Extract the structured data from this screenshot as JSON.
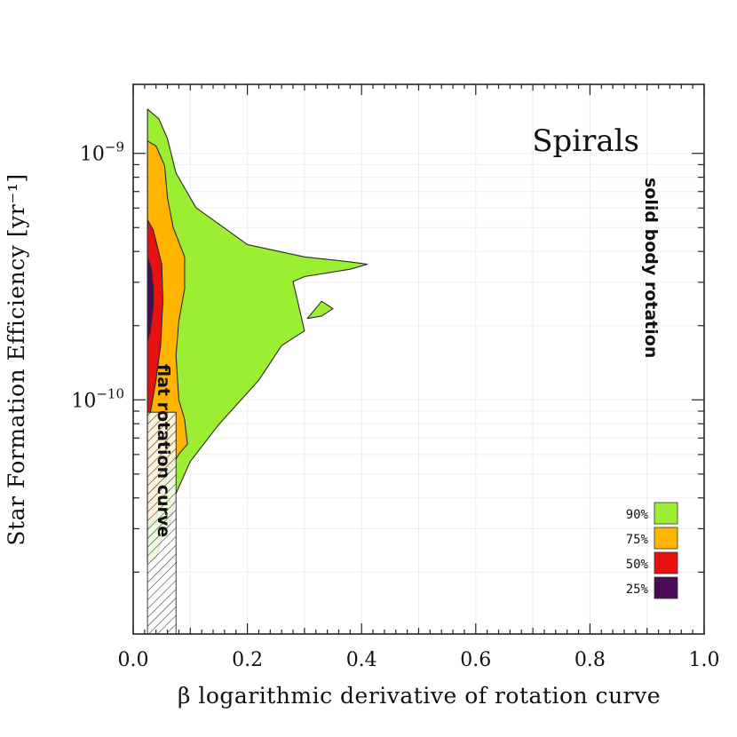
{
  "chart_data": {
    "type": "contour",
    "title": "Spirals",
    "xlabel": "β logarithmic derivative of rotation curve",
    "ylabel": "Star Formation Efficiency [yr⁻¹]",
    "xlim": [
      0.0,
      1.0
    ],
    "ylim_log10": [
      -10.95,
      -8.72
    ],
    "xticks": [
      0.0,
      0.2,
      0.4,
      0.6,
      0.8,
      1.0
    ],
    "xtick_labels": [
      "0.0",
      "0.2",
      "0.4",
      "0.6",
      "0.8",
      "1.0"
    ],
    "yticks_log10": [
      -10,
      -9
    ],
    "ytick_labels": [
      {
        "base": "10",
        "exp": "−10"
      },
      {
        "base": "10",
        "exp": "−9"
      }
    ],
    "grid": true,
    "annotations": {
      "flat": "flat rotation curve",
      "solid": "solid body rotation"
    },
    "legend_position": "bottom-right",
    "contours": [
      {
        "level": "90%",
        "color": "#9cee32",
        "polygons": [
          [
            [
              0.025,
              -8.82
            ],
            [
              0.045,
              -8.86
            ],
            [
              0.06,
              -8.94
            ],
            [
              0.075,
              -9.08
            ],
            [
              0.11,
              -9.22
            ],
            [
              0.2,
              -9.37
            ],
            [
              0.3,
              -9.42
            ],
            [
              0.38,
              -9.44
            ],
            [
              0.41,
              -9.45
            ],
            [
              0.38,
              -9.47
            ],
            [
              0.3,
              -9.5
            ],
            [
              0.28,
              -9.52
            ],
            [
              0.29,
              -9.62
            ],
            [
              0.3,
              -9.72
            ],
            [
              0.26,
              -9.78
            ],
            [
              0.22,
              -9.92
            ],
            [
              0.15,
              -10.1
            ],
            [
              0.1,
              -10.25
            ],
            [
              0.075,
              -10.38
            ],
            [
              0.065,
              -10.5
            ],
            [
              0.05,
              -10.56
            ],
            [
              0.04,
              -10.64
            ],
            [
              0.025,
              -10.66
            ]
          ],
          [
            [
              0.305,
              -9.67
            ],
            [
              0.33,
              -9.6
            ],
            [
              0.35,
              -9.63
            ],
            [
              0.33,
              -9.66
            ]
          ]
        ]
      },
      {
        "level": "75%",
        "color": "#ffb400",
        "polygons": [
          [
            [
              0.025,
              -8.95
            ],
            [
              0.04,
              -8.97
            ],
            [
              0.055,
              -9.05
            ],
            [
              0.06,
              -9.18
            ],
            [
              0.07,
              -9.3
            ],
            [
              0.09,
              -9.42
            ],
            [
              0.09,
              -9.55
            ],
            [
              0.08,
              -9.68
            ],
            [
              0.075,
              -9.82
            ],
            [
              0.08,
              -10.0
            ],
            [
              0.09,
              -10.08
            ],
            [
              0.095,
              -10.18
            ],
            [
              0.08,
              -10.22
            ],
            [
              0.06,
              -10.3
            ],
            [
              0.04,
              -10.48
            ],
            [
              0.025,
              -10.52
            ]
          ]
        ]
      },
      {
        "level": "50%",
        "color": "#e81010",
        "polygons": [
          [
            [
              0.025,
              -9.27
            ],
            [
              0.035,
              -9.31
            ],
            [
              0.05,
              -9.45
            ],
            [
              0.052,
              -9.6
            ],
            [
              0.048,
              -9.78
            ],
            [
              0.04,
              -9.92
            ],
            [
              0.025,
              -10.12
            ]
          ]
        ]
      },
      {
        "level": "25%",
        "color": "#4a0a55",
        "polygons": [
          [
            [
              0.025,
              -9.42
            ],
            [
              0.032,
              -9.47
            ],
            [
              0.035,
              -9.55
            ],
            [
              0.035,
              -9.62
            ],
            [
              0.03,
              -9.72
            ],
            [
              0.025,
              -9.76
            ]
          ]
        ]
      }
    ],
    "hatch_region": [
      [
        0.025,
        -10.05
      ],
      [
        0.075,
        -10.05
      ],
      [
        0.075,
        -10.95
      ],
      [
        0.025,
        -10.95
      ]
    ]
  }
}
